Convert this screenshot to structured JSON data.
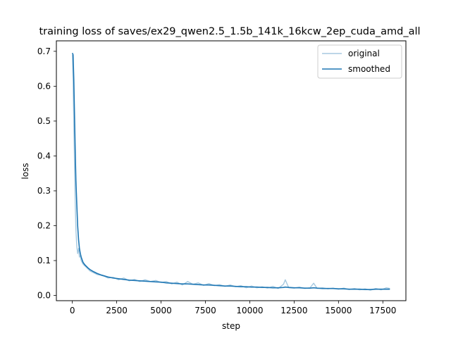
{
  "chart_data": {
    "type": "line",
    "title": "training loss of saves/ex29_qwen2.5_1.5b_141k_16kcw_2ep_cuda_amd_all",
    "xlabel": "step",
    "ylabel": "loss",
    "xlim": [
      -900,
      18800
    ],
    "ylim": [
      -0.015,
      0.73
    ],
    "xticks": [
      0,
      2500,
      5000,
      7500,
      10000,
      12500,
      15000,
      17500
    ],
    "yticks": [
      0.0,
      0.1,
      0.2,
      0.3,
      0.4,
      0.5,
      0.6,
      0.7
    ],
    "ytick_labels": [
      "0.0",
      "0.1",
      "0.2",
      "0.3",
      "0.4",
      "0.5",
      "0.6",
      "0.7"
    ],
    "grid": false,
    "legend_position": "top-right",
    "series": [
      {
        "name": "original",
        "color": "#a6c9e0",
        "x": [
          0,
          40,
          80,
          120,
          160,
          200,
          250,
          300,
          350,
          400,
          450,
          500,
          600,
          700,
          800,
          900,
          1000,
          1200,
          1400,
          1600,
          1800,
          2000,
          2300,
          2600,
          2900,
          3200,
          3500,
          3800,
          4100,
          4400,
          4700,
          5000,
          5300,
          5600,
          5900,
          6200,
          6500,
          6800,
          7100,
          7400,
          7700,
          8000,
          8300,
          8600,
          8900,
          9200,
          9500,
          9800,
          10100,
          10400,
          10700,
          11000,
          11300,
          11600,
          11900,
          12000,
          12200,
          12500,
          12800,
          13100,
          13400,
          13600,
          13800,
          14100,
          14400,
          14700,
          15000,
          15300,
          15600,
          15900,
          16200,
          16500,
          16800,
          17100,
          17400,
          17700,
          17900
        ],
        "y": [
          0.69,
          0.62,
          0.5,
          0.38,
          0.27,
          0.19,
          0.14,
          0.12,
          0.135,
          0.11,
          0.115,
          0.1,
          0.09,
          0.085,
          0.08,
          0.075,
          0.07,
          0.065,
          0.06,
          0.058,
          0.055,
          0.05,
          0.052,
          0.045,
          0.05,
          0.042,
          0.046,
          0.04,
          0.045,
          0.04,
          0.043,
          0.037,
          0.04,
          0.033,
          0.038,
          0.03,
          0.04,
          0.032,
          0.036,
          0.029,
          0.034,
          0.028,
          0.031,
          0.026,
          0.03,
          0.025,
          0.028,
          0.022,
          0.027,
          0.022,
          0.025,
          0.021,
          0.026,
          0.02,
          0.032,
          0.045,
          0.022,
          0.021,
          0.024,
          0.02,
          0.022,
          0.035,
          0.02,
          0.022,
          0.019,
          0.021,
          0.018,
          0.021,
          0.017,
          0.02,
          0.016,
          0.019,
          0.015,
          0.02,
          0.016,
          0.022,
          0.02
        ]
      },
      {
        "name": "smoothed",
        "color": "#1f77b4",
        "x": [
          0,
          40,
          80,
          120,
          160,
          200,
          250,
          300,
          350,
          400,
          450,
          500,
          600,
          700,
          800,
          900,
          1000,
          1200,
          1400,
          1600,
          1800,
          2000,
          2300,
          2600,
          2900,
          3200,
          3500,
          3800,
          4100,
          4400,
          4700,
          5000,
          5300,
          5600,
          5900,
          6200,
          6500,
          6800,
          7100,
          7400,
          7700,
          8000,
          8300,
          8600,
          8900,
          9200,
          9500,
          9800,
          10100,
          10400,
          10700,
          11000,
          11300,
          11600,
          11900,
          12000,
          12200,
          12500,
          12800,
          13100,
          13400,
          13600,
          13800,
          14100,
          14400,
          14700,
          15000,
          15300,
          15600,
          15900,
          16200,
          16500,
          16800,
          17100,
          17400,
          17700,
          17900
        ],
        "y": [
          0.695,
          0.69,
          0.62,
          0.52,
          0.42,
          0.33,
          0.26,
          0.2,
          0.16,
          0.135,
          0.12,
          0.11,
          0.095,
          0.088,
          0.083,
          0.078,
          0.074,
          0.068,
          0.063,
          0.059,
          0.056,
          0.053,
          0.05,
          0.048,
          0.046,
          0.044,
          0.043,
          0.042,
          0.041,
          0.04,
          0.039,
          0.038,
          0.036,
          0.035,
          0.034,
          0.033,
          0.033,
          0.032,
          0.031,
          0.03,
          0.03,
          0.029,
          0.028,
          0.027,
          0.027,
          0.026,
          0.025,
          0.025,
          0.024,
          0.024,
          0.023,
          0.023,
          0.022,
          0.022,
          0.023,
          0.024,
          0.023,
          0.022,
          0.022,
          0.021,
          0.021,
          0.022,
          0.021,
          0.02,
          0.02,
          0.02,
          0.019,
          0.019,
          0.018,
          0.018,
          0.018,
          0.017,
          0.017,
          0.018,
          0.018,
          0.018,
          0.018
        ]
      }
    ]
  }
}
